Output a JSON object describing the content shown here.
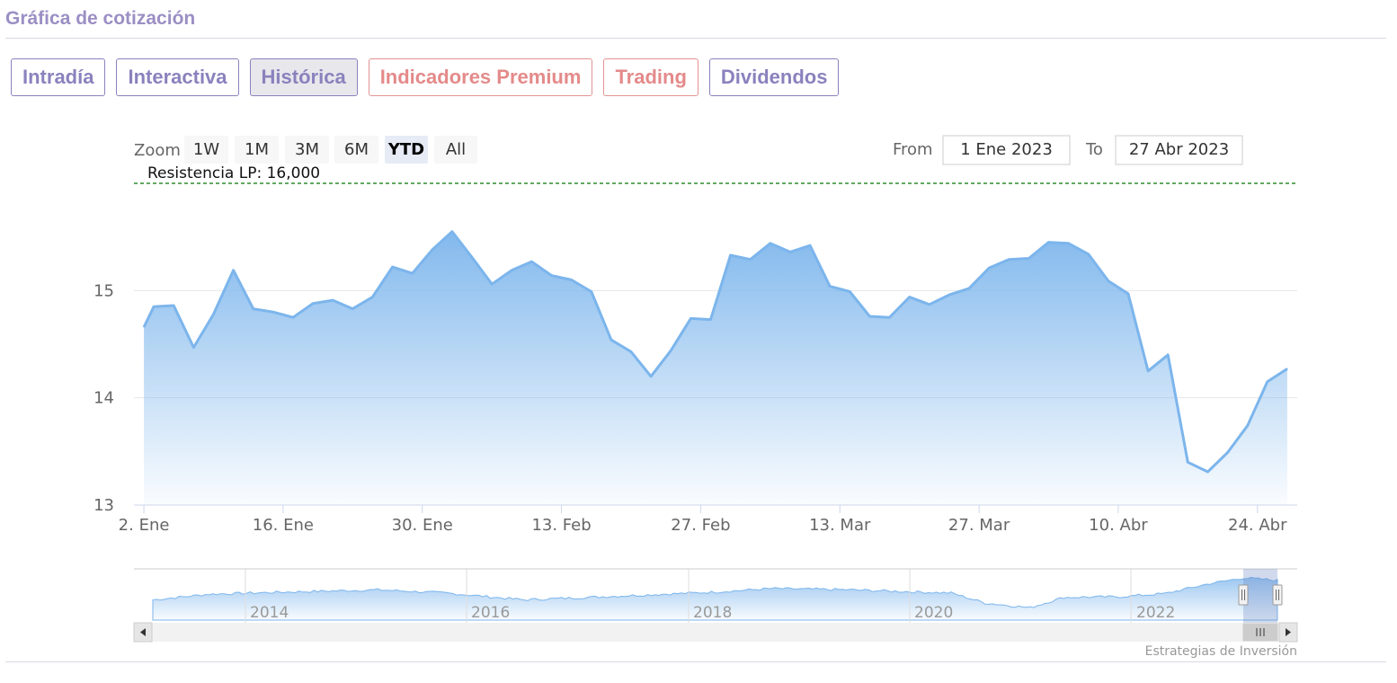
{
  "header": {
    "title": "Gráfica de cotización"
  },
  "tabs": [
    {
      "label": "Intradía",
      "active": false,
      "premium": false
    },
    {
      "label": "Interactiva",
      "active": false,
      "premium": false
    },
    {
      "label": "Histórica",
      "active": true,
      "premium": false
    },
    {
      "label": "Indicadores Premium",
      "active": false,
      "premium": true
    },
    {
      "label": "Trading",
      "active": false,
      "premium": true
    },
    {
      "label": "Dividendos",
      "active": false,
      "premium": false
    }
  ],
  "range_selector": {
    "zoom_label": "Zoom",
    "buttons": [
      "1W",
      "1M",
      "3M",
      "6M",
      "YTD",
      "All"
    ],
    "selected": "YTD",
    "from_label": "From",
    "from_value": "1 Ene 2023",
    "to_label": "To",
    "to_value": "27 Abr 2023"
  },
  "credits": "Estrategias de Inversión",
  "colors": {
    "accent": "#8a82bd",
    "premium": "#e48a8a",
    "series": "#7cb5ec",
    "resistance": "#2e8b2e"
  },
  "chart_data": {
    "type": "area",
    "x_format": "date",
    "ylim": [
      13,
      16
    ],
    "yticks": [
      13,
      14,
      15
    ],
    "resistance": {
      "label": "Resistencia LP: 16,000",
      "value": 16
    },
    "xaxis_ticks": [
      "2. Ene",
      "16. Ene",
      "30. Ene",
      "13. Feb",
      "27. Feb",
      "13. Mar",
      "27. Mar",
      "10. Abr",
      "24. Abr"
    ],
    "points": [
      [
        "2023-01-02",
        14.66
      ],
      [
        "2023-01-03",
        14.85
      ],
      [
        "2023-01-05",
        14.86
      ],
      [
        "2023-01-07",
        14.47
      ],
      [
        "2023-01-09",
        14.78
      ],
      [
        "2023-01-11",
        15.19
      ],
      [
        "2023-01-13",
        14.83
      ],
      [
        "2023-01-15",
        14.8
      ],
      [
        "2023-01-17",
        14.75
      ],
      [
        "2023-01-19",
        14.88
      ],
      [
        "2023-01-21",
        14.91
      ],
      [
        "2023-01-23",
        14.83
      ],
      [
        "2023-01-25",
        14.94
      ],
      [
        "2023-01-27",
        15.22
      ],
      [
        "2023-01-29",
        15.16
      ],
      [
        "2023-01-31",
        15.38
      ],
      [
        "2023-02-02",
        15.55
      ],
      [
        "2023-02-04",
        15.31
      ],
      [
        "2023-02-06",
        15.06
      ],
      [
        "2023-02-08",
        15.19
      ],
      [
        "2023-02-10",
        15.27
      ],
      [
        "2023-02-12",
        15.14
      ],
      [
        "2023-02-14",
        15.1
      ],
      [
        "2023-02-16",
        14.99
      ],
      [
        "2023-02-18",
        14.54
      ],
      [
        "2023-02-20",
        14.43
      ],
      [
        "2023-02-22",
        14.2
      ],
      [
        "2023-02-24",
        14.44
      ],
      [
        "2023-02-26",
        14.74
      ],
      [
        "2023-02-28",
        14.73
      ],
      [
        "2023-03-02",
        15.33
      ],
      [
        "2023-03-04",
        15.29
      ],
      [
        "2023-03-06",
        15.44
      ],
      [
        "2023-03-08",
        15.36
      ],
      [
        "2023-03-10",
        15.42
      ],
      [
        "2023-03-12",
        15.04
      ],
      [
        "2023-03-14",
        14.99
      ],
      [
        "2023-03-16",
        14.76
      ],
      [
        "2023-03-18",
        14.75
      ],
      [
        "2023-03-20",
        14.94
      ],
      [
        "2023-03-22",
        14.87
      ],
      [
        "2023-03-24",
        14.96
      ],
      [
        "2023-03-26",
        15.02
      ],
      [
        "2023-03-28",
        15.21
      ],
      [
        "2023-03-30",
        15.29
      ],
      [
        "2023-04-01",
        15.3
      ],
      [
        "2023-04-03",
        15.45
      ],
      [
        "2023-04-05",
        15.44
      ],
      [
        "2023-04-07",
        15.34
      ],
      [
        "2023-04-09",
        15.09
      ],
      [
        "2023-04-11",
        14.97
      ],
      [
        "2023-04-13",
        14.25
      ],
      [
        "2023-04-15",
        14.4
      ],
      [
        "2023-04-17",
        13.4
      ],
      [
        "2023-04-19",
        13.31
      ],
      [
        "2023-04-21",
        13.49
      ],
      [
        "2023-04-23",
        13.74
      ],
      [
        "2023-04-25",
        14.15
      ],
      [
        "2023-04-27",
        14.27
      ]
    ]
  }
}
